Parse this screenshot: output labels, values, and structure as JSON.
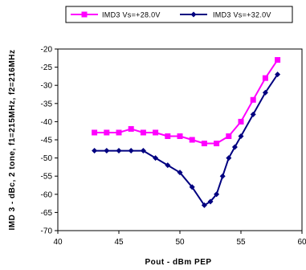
{
  "chart_data": {
    "type": "line",
    "title": "",
    "xlabel": "Pout - dBm PEP",
    "ylabel": "IMD 3 - dBc, 2 tone, f1=215MHz, f2=216MHz",
    "xlim": [
      40,
      60
    ],
    "ylim": [
      -70,
      -20
    ],
    "xticks": [
      40,
      45,
      50,
      55,
      60
    ],
    "yticks": [
      -70,
      -65,
      -60,
      -55,
      -50,
      -45,
      -40,
      -35,
      -30,
      -25,
      -20
    ],
    "grid": false,
    "legend": "top",
    "series": [
      {
        "name": "IMD3 Vs=+28.0V",
        "color": "#ff00ff",
        "marker": "square",
        "x": [
          43,
          44,
          45,
          46,
          47,
          48,
          49,
          50,
          51,
          52,
          53,
          54,
          55,
          56,
          57,
          58
        ],
        "y": [
          -43,
          -43,
          -43,
          -42,
          -43,
          -43,
          -44,
          -44,
          -45,
          -46,
          -46,
          -44,
          -40,
          -34,
          -28,
          -23
        ]
      },
      {
        "name": "IMD3 Vs=+32.0V",
        "color": "#000080",
        "marker": "diamond",
        "x": [
          43,
          44,
          45,
          46,
          47,
          48,
          49,
          50,
          51,
          52,
          52.5,
          53,
          53.5,
          54,
          54.5,
          55,
          56,
          57,
          58
        ],
        "y": [
          -48,
          -48,
          -48,
          -48,
          -48,
          -50,
          -52,
          -54,
          -58,
          -63,
          -62,
          -60,
          -55,
          -50,
          -47,
          -44,
          -38,
          -32,
          -27
        ]
      }
    ]
  }
}
